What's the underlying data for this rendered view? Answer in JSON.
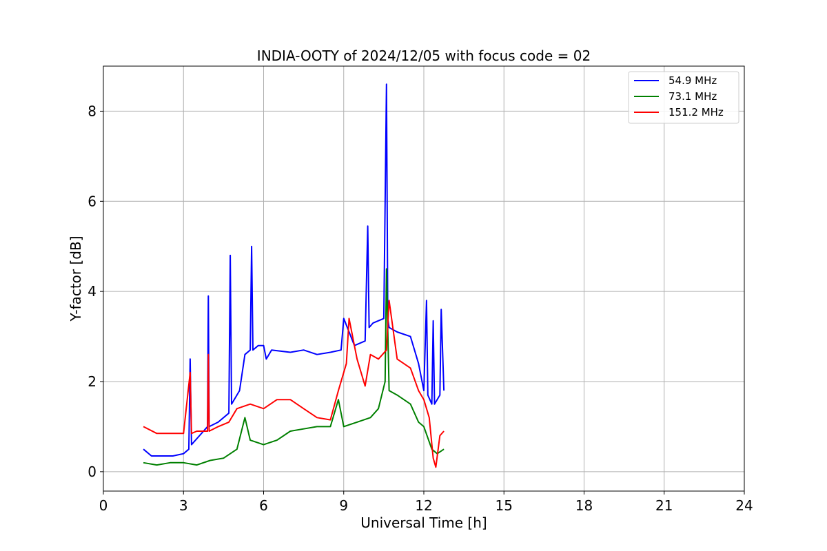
{
  "chart_data": {
    "type": "line",
    "title": "INDIA-OOTY of 2024/12/05 with focus code = 02",
    "xlabel": "Universal Time [h]",
    "ylabel": "Y-factor [dB]",
    "xlim": [
      0,
      24
    ],
    "ylim": [
      -0.43,
      9.0
    ],
    "xticks": [
      0,
      3,
      6,
      9,
      12,
      15,
      18,
      21,
      24
    ],
    "yticks": [
      0,
      2,
      4,
      6,
      8
    ],
    "grid": true,
    "legend_position": "top-right",
    "series": [
      {
        "name": "  54.9 MHz",
        "color": "#0000ff",
        "x": [
          1.5,
          1.8,
          2.2,
          2.6,
          3.0,
          3.2,
          3.25,
          3.3,
          3.6,
          3.9,
          3.93,
          3.96,
          4.3,
          4.7,
          4.75,
          4.8,
          5.1,
          5.3,
          5.5,
          5.55,
          5.6,
          5.8,
          6.0,
          6.1,
          6.3,
          7.0,
          7.5,
          8.0,
          8.5,
          8.9,
          9.0,
          9.4,
          9.8,
          9.9,
          9.95,
          10.1,
          10.5,
          10.6,
          10.65,
          10.7,
          11.0,
          11.5,
          11.8,
          12.0,
          12.1,
          12.15,
          12.3,
          12.35,
          12.4,
          12.6,
          12.65,
          12.75
        ],
        "values": [
          0.5,
          0.35,
          0.35,
          0.35,
          0.4,
          0.5,
          2.5,
          0.6,
          0.8,
          1.0,
          3.9,
          1.0,
          1.1,
          1.3,
          4.8,
          1.5,
          1.8,
          2.6,
          2.7,
          5.0,
          2.7,
          2.8,
          2.8,
          2.5,
          2.7,
          2.65,
          2.7,
          2.6,
          2.65,
          2.7,
          3.4,
          2.8,
          2.9,
          5.45,
          3.2,
          3.3,
          3.4,
          8.6,
          3.4,
          3.2,
          3.1,
          3.0,
          2.4,
          1.8,
          3.8,
          1.7,
          1.5,
          3.35,
          1.5,
          1.7,
          3.6,
          1.8
        ]
      },
      {
        "name": "  73.1 MHz",
        "color": "#008000",
        "x": [
          1.5,
          2.0,
          2.5,
          3.0,
          3.5,
          4.0,
          4.5,
          5.0,
          5.3,
          5.5,
          6.0,
          6.5,
          7.0,
          7.5,
          8.0,
          8.5,
          8.8,
          9.0,
          9.5,
          10.0,
          10.3,
          10.55,
          10.6,
          10.7,
          11.0,
          11.5,
          11.8,
          12.0,
          12.3,
          12.5,
          12.75
        ],
        "values": [
          0.2,
          0.15,
          0.2,
          0.2,
          0.15,
          0.25,
          0.3,
          0.5,
          1.2,
          0.7,
          0.6,
          0.7,
          0.9,
          0.95,
          1.0,
          1.0,
          1.6,
          1.0,
          1.1,
          1.2,
          1.4,
          2.0,
          4.5,
          1.8,
          1.7,
          1.5,
          1.1,
          1.0,
          0.5,
          0.4,
          0.5
        ]
      },
      {
        "name": "151.2 MHz",
        "color": "#ff0000",
        "x": [
          1.5,
          2.0,
          2.5,
          3.0,
          3.25,
          3.3,
          3.5,
          3.9,
          3.93,
          3.96,
          4.3,
          4.7,
          5.0,
          5.5,
          6.0,
          6.5,
          7.0,
          7.5,
          8.0,
          8.5,
          8.8,
          9.1,
          9.2,
          9.5,
          9.8,
          10.0,
          10.3,
          10.6,
          10.7,
          11.0,
          11.5,
          11.8,
          12.0,
          12.2,
          12.35,
          12.45,
          12.6,
          12.75
        ],
        "values": [
          1.0,
          0.85,
          0.85,
          0.85,
          2.2,
          0.85,
          0.9,
          0.9,
          2.6,
          0.9,
          1.0,
          1.1,
          1.4,
          1.5,
          1.4,
          1.6,
          1.6,
          1.4,
          1.2,
          1.15,
          1.8,
          2.4,
          3.4,
          2.5,
          1.9,
          2.6,
          2.5,
          2.7,
          3.8,
          2.5,
          2.3,
          1.8,
          1.6,
          1.2,
          0.3,
          0.1,
          0.8,
          0.9
        ]
      }
    ]
  }
}
